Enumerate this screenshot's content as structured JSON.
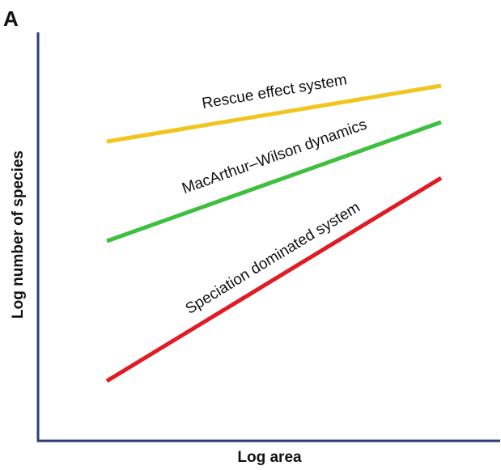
{
  "panel_label": "A",
  "axes": {
    "x_title": "Log area",
    "y_title": "Log number of species",
    "axis_color": "#2a3f7c"
  },
  "lines": [
    {
      "label": "Rescue effect system",
      "color": "#f2c51d"
    },
    {
      "label": "MacArthur–Wilson dynamics",
      "color": "#3fbf3f"
    },
    {
      "label": "Speciation dominated system",
      "color": "#e01b24"
    }
  ]
}
